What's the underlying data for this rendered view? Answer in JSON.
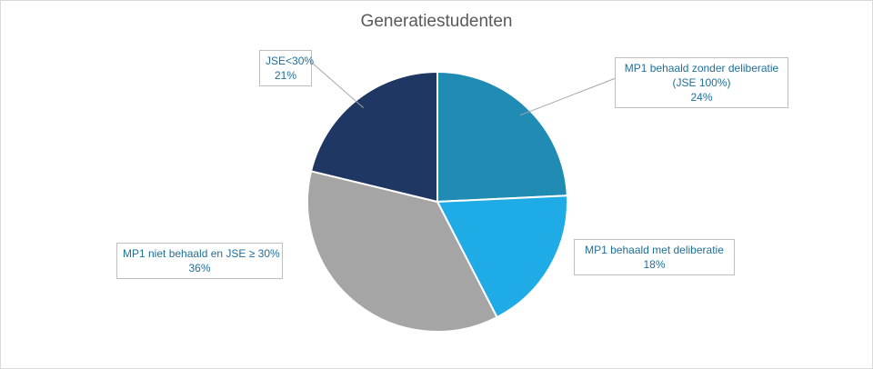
{
  "chart_data": {
    "type": "pie",
    "title": "Generatiestudenten",
    "slices": [
      {
        "label_lines": [
          "MP1 behaald zonder deliberatie",
          "(JSE 100%)"
        ],
        "value": 24,
        "value_label": "24%",
        "color": "#208bb3"
      },
      {
        "label_lines": [
          "MP1 behaald met deliberatie"
        ],
        "value": 18,
        "value_label": "18%",
        "color": "#1fabe6"
      },
      {
        "label_lines": [
          "MP1 niet behaald en JSE ≥ 30%"
        ],
        "value": 36,
        "value_label": "36%",
        "color": "#a5a5a5"
      },
      {
        "label_lines": [
          "JSE<30%"
        ],
        "value": 21,
        "value_label": "21%",
        "color": "#1f3763"
      }
    ],
    "start_angle_deg": 0,
    "direction": "clockwise",
    "legend": "none",
    "label_color": "#1f6f9a"
  }
}
